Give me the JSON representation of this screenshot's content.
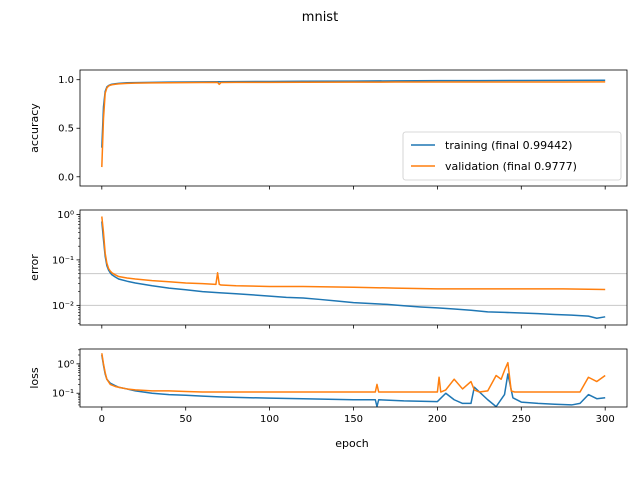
{
  "chart_data": {
    "type": "line",
    "title": "mnist",
    "xlabel": "epoch",
    "x_ticks": [
      "0",
      "50",
      "100",
      "150",
      "200",
      "250",
      "300"
    ],
    "xlim": [
      -13,
      313
    ],
    "series_colors": {
      "training": "#1f77b4",
      "validation": "#ff7f0e"
    },
    "subplots": [
      {
        "ylabel": "accuracy",
        "scale": "linear",
        "ylim": [
          -0.095,
          1.1
        ],
        "y_ticks": [
          "0.0",
          "0.5",
          "1.0"
        ],
        "legend": {
          "position": "lower-right",
          "entries": [
            "training (final 0.99442)",
            "validation (final 0.9777)"
          ]
        },
        "series": [
          {
            "name": "training (final 0.99442)",
            "x": [
              0,
              1,
              2,
              3,
              4,
              5,
              6,
              8,
              10,
              15,
              20,
              30,
              40,
              50,
              60,
              70,
              80,
              100,
              120,
              150,
              175,
              200,
              225,
              250,
              275,
              300
            ],
            "y": [
              0.3,
              0.72,
              0.88,
              0.925,
              0.94,
              0.948,
              0.953,
              0.958,
              0.962,
              0.968,
              0.97,
              0.973,
              0.975,
              0.977,
              0.978,
              0.979,
              0.98,
              0.982,
              0.984,
              0.986,
              0.988,
              0.99,
              0.991,
              0.992,
              0.993,
              0.99442
            ]
          },
          {
            "name": "validation (final 0.9777)",
            "x": [
              0,
              1,
              2,
              3,
              4,
              5,
              6,
              8,
              10,
              15,
              20,
              30,
              40,
              50,
              60,
              69,
              70,
              71,
              80,
              100,
              120,
              150,
              175,
              200,
              225,
              250,
              275,
              300
            ],
            "y": [
              0.1,
              0.6,
              0.86,
              0.915,
              0.935,
              0.943,
              0.948,
              0.953,
              0.957,
              0.962,
              0.965,
              0.967,
              0.969,
              0.97,
              0.971,
              0.972,
              0.952,
              0.971,
              0.972,
              0.973,
              0.974,
              0.975,
              0.976,
              0.977,
              0.977,
              0.977,
              0.977,
              0.9777
            ]
          }
        ]
      },
      {
        "ylabel": "error",
        "scale": "log",
        "ylim": [
          0.0037,
          1.25
        ],
        "y_ticks": [
          {
            "value": 0.01,
            "label": "10⁻²"
          },
          {
            "value": 0.1,
            "label": "10⁻¹"
          },
          {
            "value": 1,
            "label": "10⁰"
          }
        ],
        "hlines": [
          0.01,
          0.05
        ],
        "series": [
          {
            "name": "training",
            "x": [
              0,
              1,
              2,
              3,
              4,
              5,
              6,
              8,
              10,
              15,
              20,
              30,
              40,
              50,
              60,
              70,
              80,
              90,
              100,
              110,
              120,
              130,
              140,
              150,
              160,
              170,
              180,
              190,
              200,
              210,
              220,
              230,
              240,
              250,
              260,
              270,
              280,
              290,
              295,
              300
            ],
            "y": [
              0.7,
              0.28,
              0.12,
              0.075,
              0.06,
              0.052,
              0.047,
              0.042,
              0.038,
              0.034,
              0.031,
              0.027,
              0.024,
              0.022,
              0.02,
              0.019,
              0.018,
              0.017,
              0.016,
              0.015,
              0.0145,
              0.0135,
              0.0125,
              0.0115,
              0.011,
              0.0105,
              0.0098,
              0.0092,
              0.0088,
              0.0083,
              0.0078,
              0.0072,
              0.007,
              0.0068,
              0.0066,
              0.0063,
              0.0061,
              0.0058,
              0.0052,
              0.0056
            ]
          },
          {
            "name": "validation",
            "x": [
              0,
              1,
              2,
              3,
              4,
              5,
              6,
              8,
              10,
              15,
              20,
              30,
              40,
              50,
              60,
              68,
              69,
              70,
              71,
              80,
              100,
              120,
              150,
              175,
              200,
              225,
              250,
              275,
              300
            ],
            "y": [
              0.9,
              0.4,
              0.14,
              0.085,
              0.065,
              0.057,
              0.052,
              0.047,
              0.043,
              0.04,
              0.038,
              0.035,
              0.033,
              0.031,
              0.03,
              0.029,
              0.052,
              0.029,
              0.028,
              0.027,
              0.026,
              0.026,
              0.025,
              0.024,
              0.023,
              0.023,
              0.023,
              0.023,
              0.0223
            ]
          }
        ]
      },
      {
        "ylabel": "loss",
        "scale": "log",
        "ylim": [
          0.034,
          3.2
        ],
        "y_ticks": [
          {
            "value": 0.1,
            "label": "10⁻¹"
          },
          {
            "value": 1,
            "label": "10⁰"
          }
        ],
        "series": [
          {
            "name": "training",
            "x": [
              0,
              1,
              2,
              3,
              5,
              8,
              10,
              15,
              20,
              30,
              40,
              50,
              60,
              70,
              80,
              100,
              120,
              150,
              163,
              164,
              165,
              180,
              200,
              205,
              210,
              215,
              220,
              222,
              230,
              235,
              240,
              242,
              245,
              250,
              260,
              270,
              280,
              285,
              290,
              295,
              300
            ],
            "y": [
              2.0,
              0.9,
              0.45,
              0.3,
              0.22,
              0.18,
              0.16,
              0.14,
              0.12,
              0.1,
              0.09,
              0.085,
              0.08,
              0.075,
              0.072,
              0.068,
              0.065,
              0.06,
              0.06,
              0.035,
              0.06,
              0.055,
              0.052,
              0.1,
              0.06,
              0.045,
              0.045,
              0.16,
              0.06,
              0.035,
              0.09,
              0.45,
              0.07,
              0.05,
              0.045,
              0.042,
              0.04,
              0.045,
              0.09,
              0.065,
              0.07
            ]
          },
          {
            "name": "validation",
            "x": [
              0,
              1,
              2,
              3,
              5,
              8,
              10,
              15,
              20,
              30,
              40,
              50,
              60,
              70,
              80,
              100,
              120,
              150,
              163,
              164,
              165,
              180,
              200,
              201,
              202,
              205,
              210,
              215,
              220,
              222,
              225,
              230,
              235,
              238,
              240,
              242,
              244,
              246,
              250,
              260,
              270,
              280,
              285,
              290,
              295,
              300
            ],
            "y": [
              2.3,
              1.0,
              0.5,
              0.3,
              0.2,
              0.17,
              0.16,
              0.14,
              0.13,
              0.12,
              0.12,
              0.115,
              0.11,
              0.11,
              0.11,
              0.11,
              0.11,
              0.11,
              0.11,
              0.2,
              0.11,
              0.11,
              0.11,
              0.35,
              0.11,
              0.13,
              0.3,
              0.14,
              0.25,
              0.13,
              0.11,
              0.12,
              0.4,
              0.3,
              0.6,
              1.1,
              0.12,
              0.11,
              0.11,
              0.11,
              0.11,
              0.11,
              0.11,
              0.35,
              0.25,
              0.4
            ]
          }
        ]
      }
    ]
  }
}
